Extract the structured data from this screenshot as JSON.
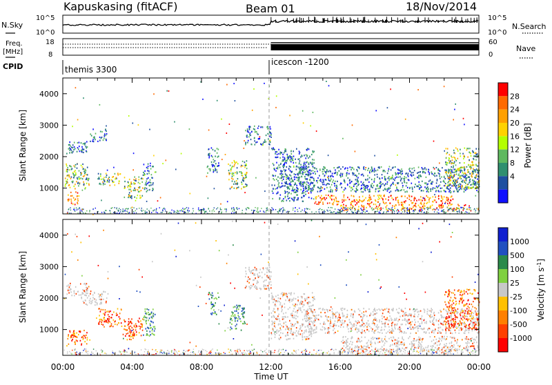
{
  "header": {
    "station": "Kapuskasing (fitACF)",
    "beam": "Beam 01",
    "date": "18/Nov/2014"
  },
  "strips": {
    "noise": {
      "left_label": "N.Sky",
      "right_label": "N.Search",
      "left_ticks": [
        "10^5",
        "10^0"
      ],
      "right_ticks": [
        "10^5",
        "10^0"
      ]
    },
    "freq": {
      "label_line1": "Freq.",
      "label_line2": "[MHz]",
      "left_ticks": [
        "18",
        "8"
      ],
      "right_ticks": [
        "60",
        "0"
      ],
      "right_label": "Nave"
    },
    "cpid": {
      "label": "CPID",
      "segments": [
        {
          "name": "themis 3300",
          "start_hour": 0
        },
        {
          "name": "icescon -1200",
          "start_hour": 12
        }
      ]
    }
  },
  "power_scale": {
    "title": "Power [dB]",
    "ticks": [
      "28",
      "24",
      "20",
      "16",
      "12",
      "8",
      "4"
    ],
    "colors": [
      "#ff0000",
      "#ff6a00",
      "#ffa000",
      "#ffd200",
      "#b4ff00",
      "#5fb95f",
      "#2f8f6f",
      "#1e4fa0",
      "#1010ff"
    ]
  },
  "velocity_scale": {
    "title": "Velocity [m s",
    "title_sup": "-1",
    "title_end": "]",
    "ticks": [
      "1000",
      "500",
      "100",
      "25",
      "-25",
      "-100",
      "-500",
      "-1000"
    ],
    "colors": [
      "#1020d0",
      "#2050c0",
      "#2a8a4a",
      "#7fd040",
      "#c8c8c8",
      "#ffc000",
      "#ff8000",
      "#ff4000",
      "#ff0000"
    ]
  },
  "chart_data": [
    {
      "type": "heatmap",
      "title": "Power",
      "ylabel": "Slant Range [km]",
      "ylim": [
        180,
        4500
      ],
      "yticks": [
        "4000",
        "3000",
        "2000",
        "1000"
      ],
      "xlim_hours": [
        0,
        24
      ],
      "xticks": [
        "00:00",
        "04:00",
        "08:00",
        "12:00",
        "16:00",
        "20:00",
        "00:00"
      ],
      "colorbar_label": "Power [dB]",
      "regions": [
        {
          "t0": 0.2,
          "t1": 1.4,
          "r0": 2100,
          "r1": 2500,
          "level": "low"
        },
        {
          "t0": 0.1,
          "t1": 1.5,
          "r0": 1000,
          "r1": 1800,
          "level": "mid"
        },
        {
          "t0": 0.2,
          "t1": 0.9,
          "r0": 500,
          "r1": 900,
          "level": "high"
        },
        {
          "t0": 1.5,
          "t1": 2.5,
          "r0": 2500,
          "r1": 2900,
          "level": "low"
        },
        {
          "t0": 2.0,
          "t1": 3.3,
          "r0": 1100,
          "r1": 1500,
          "level": "mid"
        },
        {
          "t0": 3.5,
          "t1": 4.6,
          "r0": 700,
          "r1": 1400,
          "level": "mid"
        },
        {
          "t0": 4.6,
          "t1": 5.2,
          "r0": 900,
          "r1": 1800,
          "level": "low"
        },
        {
          "t0": 8.3,
          "t1": 9.0,
          "r0": 1500,
          "r1": 2300,
          "level": "low"
        },
        {
          "t0": 9.5,
          "t1": 10.6,
          "r0": 1000,
          "r1": 1900,
          "level": "mid"
        },
        {
          "t0": 10.5,
          "t1": 12.0,
          "r0": 2400,
          "r1": 3000,
          "level": "low"
        },
        {
          "t0": 12.0,
          "t1": 14.5,
          "r0": 600,
          "r1": 2300,
          "level": "low"
        },
        {
          "t0": 13.5,
          "t1": 24.0,
          "r0": 900,
          "r1": 1700,
          "level": "low"
        },
        {
          "t0": 14.5,
          "t1": 22.5,
          "r0": 500,
          "r1": 800,
          "level": "high"
        },
        {
          "t0": 16.0,
          "t1": 24.0,
          "r0": 300,
          "r1": 500,
          "level": "high"
        },
        {
          "t0": 22.0,
          "t1": 24.0,
          "r0": 1000,
          "r1": 2300,
          "level": "mid"
        }
      ]
    },
    {
      "type": "heatmap",
      "title": "Velocity",
      "ylabel": "Slant Range [km]",
      "ylim": [
        180,
        4500
      ],
      "yticks": [
        "4000",
        "3000",
        "2000",
        "1000"
      ],
      "xlim_hours": [
        0,
        24
      ],
      "xticks": [
        "00:00",
        "04:00",
        "08:00",
        "12:00",
        "16:00",
        "20:00",
        "00:00"
      ],
      "xlabel": "Time UT",
      "colorbar_label": "Velocity [m s-1]",
      "regions": [
        {
          "t0": 0.2,
          "t1": 1.4,
          "r0": 2100,
          "r1": 2500,
          "level": "neutral"
        },
        {
          "t0": 0.2,
          "t1": 1.4,
          "r0": 500,
          "r1": 1000,
          "level": "away"
        },
        {
          "t0": 1.0,
          "t1": 2.6,
          "r0": 1800,
          "r1": 2300,
          "level": "neutral"
        },
        {
          "t0": 2.0,
          "t1": 3.4,
          "r0": 1100,
          "r1": 1700,
          "level": "away"
        },
        {
          "t0": 3.4,
          "t1": 4.6,
          "r0": 700,
          "r1": 1400,
          "level": "away"
        },
        {
          "t0": 4.6,
          "t1": 5.3,
          "r0": 800,
          "r1": 1700,
          "level": "toward"
        },
        {
          "t0": 8.4,
          "t1": 9.0,
          "r0": 1500,
          "r1": 2200,
          "level": "toward"
        },
        {
          "t0": 9.6,
          "t1": 10.5,
          "r0": 1000,
          "r1": 1800,
          "level": "toward"
        },
        {
          "t0": 10.5,
          "t1": 12.0,
          "r0": 2300,
          "r1": 3000,
          "level": "neutral"
        },
        {
          "t0": 12.0,
          "t1": 14.5,
          "r0": 700,
          "r1": 2200,
          "level": "neutral"
        },
        {
          "t0": 14.0,
          "t1": 24.0,
          "r0": 900,
          "r1": 1700,
          "level": "neutral"
        },
        {
          "t0": 16.0,
          "t1": 24.0,
          "r0": 300,
          "r1": 800,
          "level": "neutral"
        },
        {
          "t0": 22.0,
          "t1": 24.0,
          "r0": 1000,
          "r1": 2300,
          "level": "away"
        }
      ]
    }
  ]
}
